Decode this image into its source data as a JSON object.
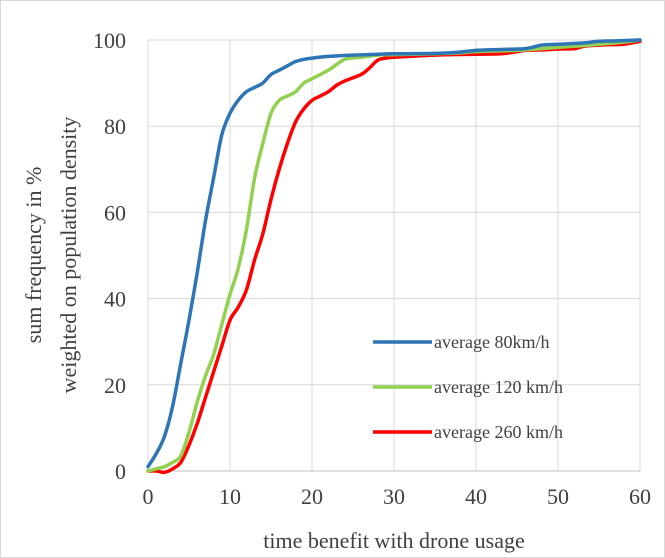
{
  "chart_data": {
    "type": "line",
    "title": "",
    "xlabel": "time benefit with drone usage",
    "ylabel_lines": [
      "sum frequency in %",
      "weighted on population density"
    ],
    "xlim": [
      0,
      60
    ],
    "ylim": [
      0,
      100
    ],
    "x_ticks": [
      0,
      10,
      20,
      30,
      40,
      50,
      60
    ],
    "y_ticks": [
      0,
      20,
      40,
      60,
      80,
      100
    ],
    "grid": true,
    "legend_position": "bottom-right",
    "series": [
      {
        "name": "average 80km/h",
        "color": "#2e75b6",
        "points": [
          [
            0,
            1
          ],
          [
            1,
            4
          ],
          [
            2,
            8
          ],
          [
            3,
            15
          ],
          [
            4,
            25
          ],
          [
            5,
            35
          ],
          [
            6,
            46
          ],
          [
            7,
            58
          ],
          [
            8,
            68
          ],
          [
            9,
            78
          ],
          [
            10,
            83
          ],
          [
            11,
            86
          ],
          [
            12,
            88
          ],
          [
            13,
            89
          ],
          [
            14,
            90
          ],
          [
            15,
            92
          ],
          [
            16,
            93
          ],
          [
            17,
            94
          ],
          [
            18,
            95
          ],
          [
            19,
            95.5
          ],
          [
            20,
            95.8
          ],
          [
            22,
            96.2
          ],
          [
            25,
            96.5
          ],
          [
            30,
            96.8
          ],
          [
            35,
            96.9
          ],
          [
            38,
            97.2
          ],
          [
            40,
            97.6
          ],
          [
            43,
            97.8
          ],
          [
            46,
            98
          ],
          [
            48,
            98.8
          ],
          [
            50,
            99
          ],
          [
            53,
            99.3
          ],
          [
            55,
            99.7
          ],
          [
            57,
            99.8
          ],
          [
            60,
            100
          ]
        ]
      },
      {
        "name": "average 120 km/h",
        "color": "#92d050",
        "points": [
          [
            0,
            0
          ],
          [
            1,
            0.5
          ],
          [
            2,
            1
          ],
          [
            3,
            2
          ],
          [
            4,
            3.5
          ],
          [
            5,
            9
          ],
          [
            6,
            16
          ],
          [
            7,
            22
          ],
          [
            8,
            27
          ],
          [
            9,
            34
          ],
          [
            10,
            41
          ],
          [
            11,
            47
          ],
          [
            12,
            56
          ],
          [
            13,
            68
          ],
          [
            14,
            76
          ],
          [
            15,
            83
          ],
          [
            16,
            86
          ],
          [
            17,
            87
          ],
          [
            18,
            88
          ],
          [
            19,
            90
          ],
          [
            20,
            91
          ],
          [
            22,
            93
          ],
          [
            24,
            95.5
          ],
          [
            26,
            96
          ],
          [
            28,
            96.5
          ],
          [
            30,
            96.6
          ],
          [
            35,
            96.8
          ],
          [
            38,
            97
          ],
          [
            40,
            97.3
          ],
          [
            45,
            97.6
          ],
          [
            48,
            98
          ],
          [
            50,
            98.3
          ],
          [
            53,
            98.7
          ],
          [
            55,
            99
          ],
          [
            58,
            99.5
          ],
          [
            60,
            100
          ]
        ]
      },
      {
        "name": "average 260 km/h",
        "color": "#ff0000",
        "points": [
          [
            0,
            0
          ],
          [
            1,
            0
          ],
          [
            2,
            -0.3
          ],
          [
            3,
            0.5
          ],
          [
            4,
            2
          ],
          [
            5,
            6
          ],
          [
            6,
            11
          ],
          [
            7,
            17
          ],
          [
            8,
            23
          ],
          [
            9,
            29
          ],
          [
            10,
            35
          ],
          [
            11,
            38
          ],
          [
            12,
            42
          ],
          [
            13,
            49
          ],
          [
            14,
            55
          ],
          [
            15,
            63
          ],
          [
            16,
            70
          ],
          [
            17,
            76
          ],
          [
            18,
            81
          ],
          [
            19,
            84
          ],
          [
            20,
            86
          ],
          [
            21,
            87
          ],
          [
            22,
            88
          ],
          [
            23,
            89.5
          ],
          [
            24,
            90.5
          ],
          [
            26,
            92
          ],
          [
            27,
            93.5
          ],
          [
            28,
            95.3
          ],
          [
            29,
            95.8
          ],
          [
            30,
            96
          ],
          [
            35,
            96.5
          ],
          [
            40,
            96.7
          ],
          [
            43,
            96.8
          ],
          [
            45,
            97.3
          ],
          [
            46,
            97.6
          ],
          [
            48,
            97.7
          ],
          [
            50,
            97.9
          ],
          [
            52,
            98
          ],
          [
            53,
            98.5
          ],
          [
            54,
            98.7
          ],
          [
            56,
            98.9
          ],
          [
            58,
            99
          ],
          [
            60,
            99.7
          ]
        ]
      }
    ]
  }
}
